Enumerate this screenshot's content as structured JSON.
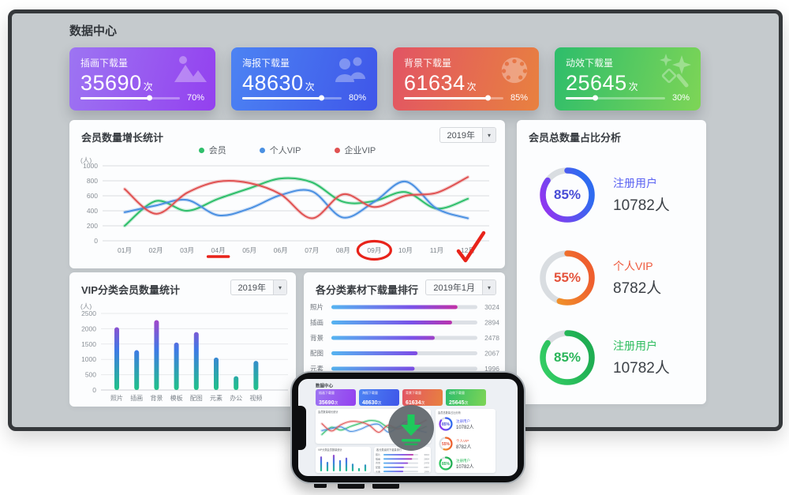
{
  "app": {
    "title": "数据中心"
  },
  "ui": {
    "caret": "▾"
  },
  "stat_cards": [
    {
      "label": "插画下载量",
      "value": "35690",
      "unit": "次",
      "percent": 70,
      "percent_text": "70%",
      "icon": "mountain-image-icon",
      "gradient": [
        "#9d75f2",
        "#9340ef"
      ]
    },
    {
      "label": "海报下载量",
      "value": "48630",
      "unit": "次",
      "percent": 80,
      "percent_text": "80%",
      "icon": "people-icon",
      "gradient": [
        "#4c83f3",
        "#3f56e9"
      ]
    },
    {
      "label": "背景下载量",
      "value": "61634",
      "unit": "次",
      "percent": 85,
      "percent_text": "85%",
      "icon": "palette-icon",
      "gradient": [
        "#e25464",
        "#e8813f"
      ]
    },
    {
      "label": "动效下载量",
      "value": "25645",
      "unit": "次",
      "percent": 30,
      "percent_text": "30%",
      "icon": "sparkles-icon",
      "gradient": [
        "#2dbd6b",
        "#7ed556"
      ]
    }
  ],
  "line_panel": {
    "dropdown": "2019年"
  },
  "bar_panel": {
    "dropdown": "2019年"
  },
  "rank_panel": {
    "dropdown": "2019年1月"
  },
  "annotations": {
    "underlined": "04月",
    "circled": "09月",
    "checked": "12月",
    "ink": "#e8231a"
  },
  "chart_data": [
    {
      "type": "line",
      "title": "会员数量增长统计",
      "y_unit": "(人)",
      "ylim": [
        0,
        1000
      ],
      "yticks": [
        0,
        200,
        400,
        600,
        800,
        1000
      ],
      "legend_position": "top",
      "grid": true,
      "categories": [
        "01月",
        "02月",
        "03月",
        "04月",
        "05月",
        "06月",
        "07月",
        "08月",
        "09月",
        "10月",
        "11月",
        "12月"
      ],
      "series": [
        {
          "name": "会员",
          "color": "#2fbf6b",
          "values": [
            200,
            530,
            400,
            560,
            700,
            830,
            780,
            520,
            530,
            650,
            430,
            560
          ]
        },
        {
          "name": "个人VIP",
          "color": "#4a90e2",
          "values": [
            380,
            470,
            545,
            340,
            430,
            610,
            660,
            310,
            520,
            790,
            430,
            300
          ]
        },
        {
          "name": "企业VIP",
          "color": "#e05252",
          "values": [
            690,
            360,
            640,
            790,
            770,
            620,
            300,
            620,
            450,
            600,
            640,
            850
          ]
        }
      ]
    },
    {
      "type": "donut",
      "title": "会员总数量占比分析",
      "items": [
        {
          "percent": 85,
          "percent_text": "85%",
          "label": "注册用户",
          "value_text": "10782人",
          "ring_colors": [
            "#9b30f0",
            "#2f6bf0"
          ],
          "percent_color": "#474cd6",
          "label_color": "#5a62f2"
        },
        {
          "percent": 55,
          "percent_text": "55%",
          "label": "个人VIP",
          "value_text": "8782人",
          "ring_colors": [
            "#f0a328",
            "#ef5f2e"
          ],
          "percent_color": "#e4533c",
          "label_color": "#ee5a3e"
        },
        {
          "percent": 85,
          "percent_text": "85%",
          "label": "注册用户",
          "value_text": "10782人",
          "ring_colors": [
            "#35d066",
            "#1fae52"
          ],
          "percent_color": "#2bb55a",
          "label_color": "#2fbd5f"
        }
      ]
    },
    {
      "type": "bar",
      "title": "VIP分类会员数量统计",
      "y_unit": "(人)",
      "ylim": [
        0,
        2500
      ],
      "yticks": [
        0,
        500,
        1000,
        1500,
        2000,
        2500
      ],
      "categories": [
        "照片",
        "插画",
        "背景",
        "模板",
        "配图",
        "元素",
        "办公",
        "视频"
      ],
      "values": [
        2050,
        1300,
        2280,
        1550,
        1890,
        1060,
        450,
        950
      ],
      "bar_gradient": [
        "#1fc287",
        "#3e7ae6",
        "#b83ac4"
      ]
    },
    {
      "type": "hbar",
      "title": "各分类素材下载量排行",
      "categories": [
        "照片",
        "插画",
        "背景",
        "配图",
        "元素"
      ],
      "values": [
        3024,
        2894,
        2478,
        2067,
        1996
      ],
      "xmax": 3500,
      "bar_gradient": [
        "#55b4f0",
        "#7a52e8",
        "#e0218a"
      ]
    }
  ],
  "phone": {
    "overlay_icon": "download-icon"
  }
}
